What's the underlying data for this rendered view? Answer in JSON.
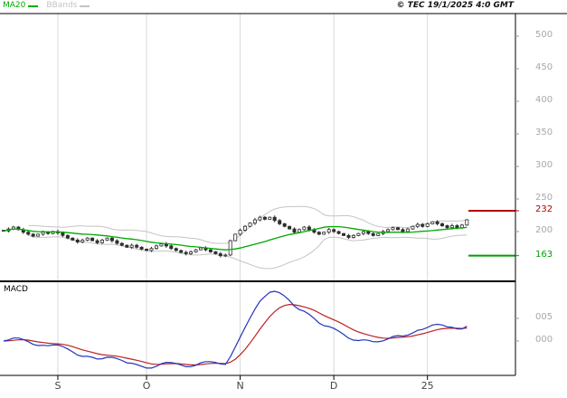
{
  "legend": {
    "ma20_label": "MA20",
    "bbands_label": "BBands"
  },
  "copyright_text": "© TEC 19/1/2025 4:0 GMT",
  "macd_panel_label": "MACD",
  "colors": {
    "ma": "#00a800",
    "bbands": "#c4c4c4",
    "candle": "#2e2e2e",
    "grid": "#d9d9d9",
    "axis_text": "#a8a8a8",
    "x_axis_text": "#444444",
    "macd": "#2233bb",
    "macd_signal": "#bb2222",
    "level_high": "#b40000",
    "level_low": "#00a000"
  },
  "chart_data": {
    "type": "candlestick",
    "title": "",
    "panels": [
      "price",
      "macd"
    ],
    "price_ticks": [
      500,
      450,
      400,
      350,
      300,
      250,
      200
    ],
    "price_axis_visible_range": [
      125,
      535
    ],
    "x_ticks": [
      {
        "label": "S",
        "i": 11
      },
      {
        "label": "O",
        "i": 29
      },
      {
        "label": "N",
        "i": 48
      },
      {
        "label": "D",
        "i": 67
      },
      {
        "label": "25",
        "i": 86
      }
    ],
    "levels": [
      {
        "label": "232",
        "value": 232,
        "color": "#b40000"
      },
      {
        "label": "163",
        "value": 163,
        "color": "#00a000"
      }
    ],
    "macd_ticks": [
      "005",
      "000"
    ],
    "indicators": [
      "MA20",
      "BBands(20,2)",
      "MACD(12,26,9)"
    ],
    "closes": [
      201,
      204,
      207,
      203,
      199,
      196,
      193,
      196,
      199,
      197,
      200,
      198,
      194,
      190,
      187,
      184,
      187,
      190,
      186,
      183,
      187,
      190,
      186,
      182,
      179,
      176,
      179,
      176,
      173,
      171,
      174,
      178,
      181,
      178,
      174,
      171,
      168,
      166,
      169,
      172,
      175,
      172,
      169,
      166,
      163,
      164,
      186,
      196,
      202,
      208,
      213,
      218,
      222,
      219,
      222,
      217,
      212,
      208,
      204,
      199,
      203,
      207,
      203,
      199,
      196,
      199,
      203,
      200,
      197,
      194,
      191,
      194,
      197,
      200,
      197,
      194,
      197,
      200,
      203,
      206,
      203,
      200,
      204,
      208,
      211,
      208,
      212,
      215,
      212,
      209,
      206,
      209,
      206,
      210,
      218
    ]
  }
}
